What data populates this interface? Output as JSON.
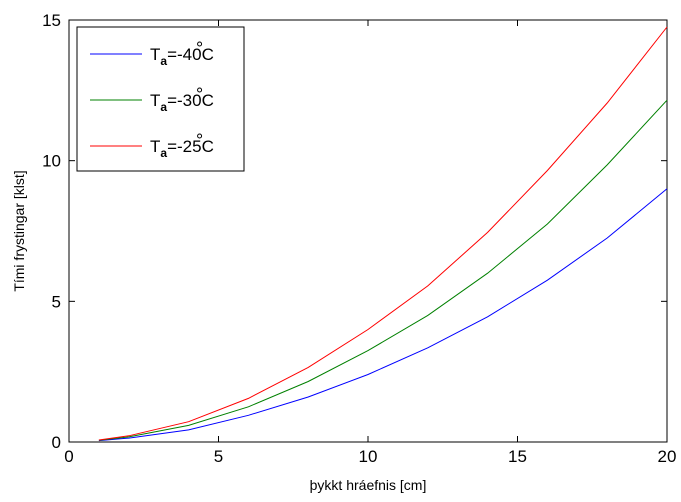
{
  "chart_data": {
    "type": "line",
    "xlabel": "þykkt hráefnis [cm]",
    "ylabel": "Tími frystingar [klst]",
    "xlim": [
      0,
      20
    ],
    "ylim": [
      0,
      15
    ],
    "xticks": [
      0,
      5,
      10,
      15,
      20
    ],
    "yticks": [
      0,
      5,
      10,
      15
    ],
    "grid": false,
    "legend_position": "top-left",
    "legend_symbol": "T",
    "legend_subscript": "a",
    "series": [
      {
        "name": "Ta=-40°C",
        "label_value": "=-40",
        "label_unit": "C",
        "color": "#0000ff",
        "x": [
          1,
          2,
          4,
          6,
          8,
          10,
          12,
          14,
          16,
          18,
          20
        ],
        "y": [
          0.05,
          0.14,
          0.43,
          0.95,
          1.6,
          2.4,
          3.35,
          4.45,
          5.75,
          7.25,
          9.0
        ]
      },
      {
        "name": "Ta=-30°C",
        "label_value": "=-30",
        "label_unit": "C",
        "color": "#008000",
        "x": [
          1,
          2,
          4,
          6,
          8,
          10,
          12,
          14,
          16,
          18,
          20
        ],
        "y": [
          0.06,
          0.18,
          0.59,
          1.25,
          2.15,
          3.25,
          4.5,
          6.0,
          7.75,
          9.85,
          12.15
        ]
      },
      {
        "name": "Ta=-25°C",
        "label_value": "=-25",
        "label_unit": "C",
        "color": "#ff0000",
        "x": [
          1,
          2,
          4,
          6,
          8,
          10,
          12,
          14,
          16,
          18,
          20
        ],
        "y": [
          0.07,
          0.22,
          0.72,
          1.55,
          2.65,
          4.0,
          5.55,
          7.45,
          9.65,
          12.05,
          14.75
        ]
      }
    ]
  }
}
